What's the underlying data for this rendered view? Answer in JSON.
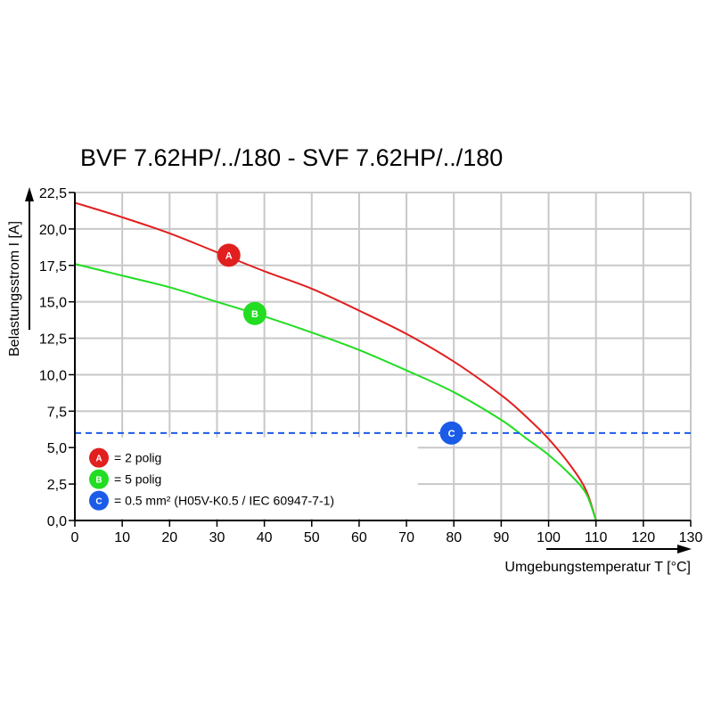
{
  "chart_data": {
    "type": "line",
    "title": "BVF 7.62HP/../180 - SVF 7.62HP/../180",
    "xlabel": "Umgebungstemperatur T [°C]",
    "ylabel": "Belastungsstrom I [A]",
    "xlim": [
      0,
      130
    ],
    "ylim": [
      0,
      22.5
    ],
    "grid": true,
    "x_ticks": [
      0,
      10,
      20,
      30,
      40,
      50,
      60,
      70,
      80,
      90,
      100,
      110,
      120,
      130
    ],
    "x_tick_labels": [
      "0",
      "10",
      "20",
      "30",
      "40",
      "50",
      "60",
      "70",
      "80",
      "90",
      "100",
      "110",
      "120",
      "130"
    ],
    "y_ticks": [
      0,
      2.5,
      5,
      7.5,
      10,
      12.5,
      15,
      17.5,
      20,
      22.5
    ],
    "y_tick_labels": [
      "0,0",
      "2,5",
      "5,0",
      "7,5",
      "10,0",
      "12,5",
      "15,0",
      "17,5",
      "20,0",
      "22,5"
    ],
    "series": [
      {
        "name": "A",
        "label": "= 2 polig",
        "color": "#e11f1f",
        "style": "solid",
        "x": [
          0,
          10,
          20,
          30,
          40,
          50,
          60,
          70,
          80,
          90,
          95,
          100,
          105,
          108,
          110
        ],
        "y": [
          21.8,
          20.8,
          19.7,
          18.4,
          17.1,
          15.9,
          14.4,
          12.8,
          10.9,
          8.6,
          7.2,
          5.6,
          3.6,
          2.0,
          0
        ]
      },
      {
        "name": "B",
        "label": "= 5 polig",
        "color": "#22dd22",
        "style": "solid",
        "x": [
          0,
          10,
          20,
          30,
          40,
          50,
          60,
          70,
          80,
          90,
          95,
          100,
          105,
          108,
          110
        ],
        "y": [
          17.6,
          16.8,
          16.0,
          15.0,
          14.0,
          12.9,
          11.7,
          10.3,
          8.8,
          6.9,
          5.7,
          4.5,
          3.0,
          1.8,
          0
        ]
      },
      {
        "name": "C",
        "label": "= 0.5 mm² (H05V-K0.5 / IEC 60947-7-1)",
        "color": "#1a5be8",
        "style": "dashed",
        "x": [
          0,
          130
        ],
        "y": [
          6.0,
          6.0
        ]
      }
    ],
    "markers": [
      {
        "series": "A",
        "x": 32.5,
        "y": 18.2
      },
      {
        "series": "B",
        "x": 38,
        "y": 14.2
      },
      {
        "series": "C",
        "x": 79.5,
        "y": 6.0
      }
    ],
    "legend": {
      "placement": "bottom-left",
      "entries": [
        {
          "key": "A",
          "text": "= 2 polig",
          "color": "#e11f1f"
        },
        {
          "key": "B",
          "text": "= 5 polig",
          "color": "#22dd22"
        },
        {
          "key": "C",
          "text": "= 0.5 mm² (H05V-K0.5 / IEC 60947-7-1)",
          "color": "#1a5be8"
        }
      ]
    },
    "colors": {
      "grid": "#c8c8c8",
      "axis": "#000000"
    }
  }
}
